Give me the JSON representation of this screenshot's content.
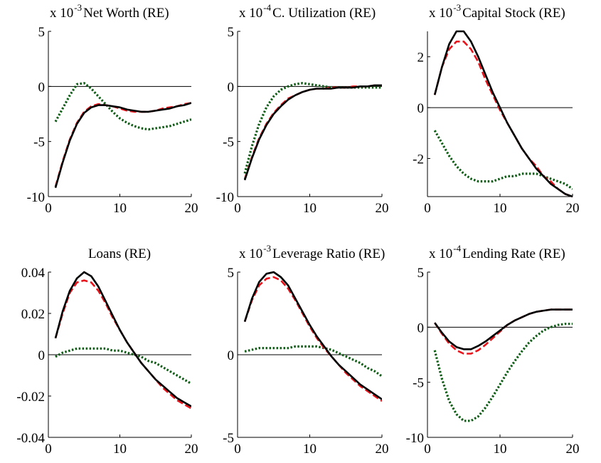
{
  "colors": {
    "solid": "#000000",
    "dashed": "#e8131b",
    "dotted": "#0d5c14",
    "zero_line": "#000000"
  },
  "chart_data": [
    {
      "type": "line",
      "title": "Net Worth (RE)",
      "scale_label": "x 10",
      "scale_exp": "-3",
      "x": [
        1,
        2,
        3,
        4,
        5,
        6,
        7,
        8,
        9,
        10,
        11,
        12,
        13,
        14,
        15,
        16,
        17,
        18,
        19,
        20
      ],
      "xlim": [
        0,
        20
      ],
      "ylim": [
        -10,
        5
      ],
      "xticks": [
        0,
        10,
        20
      ],
      "yticks": [
        -10,
        -5,
        0,
        5
      ],
      "xtick_labels": [
        "0",
        "10",
        "20"
      ],
      "ytick_labels": [
        "-10",
        "-5",
        "0",
        "5"
      ],
      "zero_line": true,
      "series": [
        {
          "style": "solid",
          "values": [
            -9.2,
            -6.9,
            -4.9,
            -3.4,
            -2.4,
            -1.9,
            -1.7,
            -1.7,
            -1.8,
            -1.9,
            -2.1,
            -2.2,
            -2.3,
            -2.3,
            -2.2,
            -2.1,
            -2.0,
            -1.8,
            -1.7,
            -1.5
          ]
        },
        {
          "style": "dashed",
          "values": [
            -9.1,
            -6.8,
            -4.8,
            -3.3,
            -2.3,
            -1.8,
            -1.6,
            -1.7,
            -1.8,
            -2.0,
            -2.2,
            -2.3,
            -2.3,
            -2.3,
            -2.2,
            -2.0,
            -1.9,
            -1.8,
            -1.6,
            -1.5
          ]
        },
        {
          "style": "dotted",
          "values": [
            -3.2,
            -2.0,
            -0.8,
            0.2,
            0.3,
            -0.2,
            -0.9,
            -1.6,
            -2.3,
            -2.9,
            -3.3,
            -3.6,
            -3.8,
            -3.9,
            -3.8,
            -3.7,
            -3.6,
            -3.4,
            -3.2,
            -3.0
          ]
        }
      ]
    },
    {
      "type": "line",
      "title": "C. Utilization (RE)",
      "scale_label": "x 10",
      "scale_exp": "-4",
      "x": [
        1,
        2,
        3,
        4,
        5,
        6,
        7,
        8,
        9,
        10,
        11,
        12,
        13,
        14,
        15,
        16,
        17,
        18,
        19,
        20
      ],
      "xlim": [
        0,
        20
      ],
      "ylim": [
        -10,
        5
      ],
      "xticks": [
        0,
        10,
        20
      ],
      "yticks": [
        -10,
        -5,
        0,
        5
      ],
      "xtick_labels": [
        "0",
        "10",
        "20"
      ],
      "ytick_labels": [
        "-10",
        "-5",
        "0",
        "5"
      ],
      "zero_line": true,
      "series": [
        {
          "style": "solid",
          "values": [
            -8.5,
            -6.5,
            -4.8,
            -3.5,
            -2.5,
            -1.8,
            -1.2,
            -0.8,
            -0.5,
            -0.3,
            -0.2,
            -0.2,
            -0.2,
            -0.1,
            -0.1,
            -0.1,
            0.0,
            0.0,
            0.1,
            0.1
          ]
        },
        {
          "style": "dashed",
          "values": [
            -8.4,
            -6.4,
            -4.7,
            -3.4,
            -2.4,
            -1.7,
            -1.1,
            -0.8,
            -0.5,
            -0.3,
            -0.2,
            -0.2,
            -0.1,
            -0.1,
            -0.1,
            0.0,
            0.0,
            0.0,
            0.1,
            0.1
          ]
        },
        {
          "style": "dotted",
          "values": [
            -7.9,
            -5.4,
            -3.4,
            -1.9,
            -0.9,
            -0.3,
            0.0,
            0.2,
            0.3,
            0.2,
            0.1,
            0.0,
            -0.1,
            -0.1,
            -0.1,
            -0.1,
            -0.1,
            -0.1,
            -0.1,
            -0.1
          ]
        }
      ]
    },
    {
      "type": "line",
      "title": "Capital Stock (RE)",
      "scale_label": "x 10",
      "scale_exp": "-3",
      "x": [
        1,
        2,
        3,
        4,
        5,
        6,
        7,
        8,
        9,
        10,
        11,
        12,
        13,
        14,
        15,
        16,
        17,
        18,
        19,
        20
      ],
      "xlim": [
        0,
        20
      ],
      "ylim": [
        -3.5,
        3
      ],
      "xticks": [
        0,
        10,
        20
      ],
      "yticks": [
        -2,
        0,
        2
      ],
      "xtick_labels": [
        "0",
        "10",
        "20"
      ],
      "ytick_labels": [
        "-2",
        "0",
        "2"
      ],
      "zero_line": true,
      "series": [
        {
          "style": "solid",
          "values": [
            0.5,
            1.6,
            2.5,
            3.0,
            3.0,
            2.6,
            2.0,
            1.3,
            0.6,
            0.0,
            -0.6,
            -1.1,
            -1.6,
            -2.0,
            -2.4,
            -2.7,
            -3.0,
            -3.2,
            -3.4,
            -3.5
          ]
        },
        {
          "style": "dashed",
          "values": [
            0.5,
            1.6,
            2.3,
            2.6,
            2.6,
            2.3,
            1.8,
            1.1,
            0.5,
            -0.1,
            -0.6,
            -1.1,
            -1.6,
            -2.0,
            -2.3,
            -2.7,
            -2.9,
            -3.2,
            -3.4,
            -3.5
          ]
        },
        {
          "style": "dotted",
          "values": [
            -0.9,
            -1.4,
            -1.9,
            -2.3,
            -2.6,
            -2.8,
            -2.9,
            -2.9,
            -2.9,
            -2.8,
            -2.7,
            -2.7,
            -2.6,
            -2.6,
            -2.6,
            -2.7,
            -2.8,
            -2.9,
            -3.0,
            -3.2
          ]
        }
      ]
    },
    {
      "type": "line",
      "title": "Loans (RE)",
      "x": [
        1,
        2,
        3,
        4,
        5,
        6,
        7,
        8,
        9,
        10,
        11,
        12,
        13,
        14,
        15,
        16,
        17,
        18,
        19,
        20
      ],
      "xlim": [
        0,
        20
      ],
      "ylim": [
        -0.04,
        0.04
      ],
      "xticks": [
        0,
        10,
        20
      ],
      "yticks": [
        -0.04,
        -0.02,
        0,
        0.02,
        0.04
      ],
      "xtick_labels": [
        "0",
        "10",
        "20"
      ],
      "ytick_labels": [
        "-0.04",
        "-0.02",
        "0",
        "0.02",
        "0.04"
      ],
      "zero_line": true,
      "series": [
        {
          "style": "solid",
          "values": [
            0.008,
            0.021,
            0.031,
            0.037,
            0.04,
            0.038,
            0.033,
            0.026,
            0.019,
            0.012,
            0.006,
            0.001,
            -0.004,
            -0.008,
            -0.012,
            -0.015,
            -0.018,
            -0.021,
            -0.023,
            -0.025
          ]
        },
        {
          "style": "dashed",
          "values": [
            0.008,
            0.02,
            0.03,
            0.035,
            0.036,
            0.035,
            0.031,
            0.025,
            0.018,
            0.012,
            0.006,
            0.001,
            -0.004,
            -0.008,
            -0.012,
            -0.016,
            -0.019,
            -0.022,
            -0.024,
            -0.026
          ]
        },
        {
          "style": "dotted",
          "values": [
            -0.001,
            0.001,
            0.002,
            0.003,
            0.003,
            0.003,
            0.003,
            0.003,
            0.002,
            0.002,
            0.001,
            0.0,
            -0.001,
            -0.003,
            -0.004,
            -0.006,
            -0.008,
            -0.01,
            -0.012,
            -0.014
          ]
        }
      ]
    },
    {
      "type": "line",
      "title": "Leverage Ratio (RE)",
      "scale_label": "x 10",
      "scale_exp": "-3",
      "x": [
        1,
        2,
        3,
        4,
        5,
        6,
        7,
        8,
        9,
        10,
        11,
        12,
        13,
        14,
        15,
        16,
        17,
        18,
        19,
        20
      ],
      "xlim": [
        0,
        20
      ],
      "ylim": [
        -5,
        5
      ],
      "xticks": [
        0,
        10,
        20
      ],
      "yticks": [
        -5,
        0,
        5
      ],
      "xtick_labels": [
        "0",
        "10",
        "20"
      ],
      "ytick_labels": [
        "-5",
        "0",
        "5"
      ],
      "zero_line": true,
      "series": [
        {
          "style": "solid",
          "values": [
            2.0,
            3.4,
            4.4,
            4.9,
            5.0,
            4.7,
            4.2,
            3.4,
            2.6,
            1.8,
            1.1,
            0.5,
            -0.1,
            -0.6,
            -1.0,
            -1.4,
            -1.8,
            -2.1,
            -2.4,
            -2.7
          ]
        },
        {
          "style": "dashed",
          "values": [
            2.0,
            3.3,
            4.2,
            4.6,
            4.7,
            4.5,
            4.0,
            3.3,
            2.5,
            1.7,
            1.0,
            0.4,
            -0.1,
            -0.6,
            -1.1,
            -1.5,
            -1.9,
            -2.2,
            -2.5,
            -2.8
          ]
        },
        {
          "style": "dotted",
          "values": [
            0.2,
            0.3,
            0.4,
            0.4,
            0.4,
            0.4,
            0.4,
            0.5,
            0.5,
            0.5,
            0.5,
            0.4,
            0.3,
            0.1,
            -0.1,
            -0.3,
            -0.5,
            -0.8,
            -1.0,
            -1.3
          ]
        }
      ]
    },
    {
      "type": "line",
      "title": "Lending Rate (RE)",
      "scale_label": "x 10",
      "scale_exp": "-4",
      "x": [
        1,
        2,
        3,
        4,
        5,
        6,
        7,
        8,
        9,
        10,
        11,
        12,
        13,
        14,
        15,
        16,
        17,
        18,
        19,
        20
      ],
      "xlim": [
        0,
        20
      ],
      "ylim": [
        -10,
        5
      ],
      "xticks": [
        0,
        10,
        20
      ],
      "yticks": [
        -10,
        -5,
        0,
        5
      ],
      "xtick_labels": [
        "0",
        "10",
        "20"
      ],
      "ytick_labels": [
        "-10",
        "-5",
        "0",
        "5"
      ],
      "zero_line": true,
      "series": [
        {
          "style": "solid",
          "values": [
            0.4,
            -0.5,
            -1.3,
            -1.8,
            -2.0,
            -2.0,
            -1.7,
            -1.3,
            -0.8,
            -0.3,
            0.2,
            0.6,
            0.9,
            1.2,
            1.4,
            1.5,
            1.6,
            1.6,
            1.6,
            1.6
          ]
        },
        {
          "style": "dashed",
          "values": [
            0.4,
            -0.6,
            -1.5,
            -2.1,
            -2.4,
            -2.4,
            -2.1,
            -1.6,
            -1.0,
            -0.4,
            0.2,
            0.6,
            0.9,
            1.2,
            1.4,
            1.5,
            1.6,
            1.6,
            1.6,
            1.6
          ]
        },
        {
          "style": "dotted",
          "values": [
            -2.1,
            -4.7,
            -6.7,
            -7.9,
            -8.5,
            -8.5,
            -8.1,
            -7.3,
            -6.3,
            -5.2,
            -4.1,
            -3.1,
            -2.2,
            -1.4,
            -0.8,
            -0.3,
            0.0,
            0.2,
            0.3,
            0.3
          ]
        }
      ]
    }
  ]
}
